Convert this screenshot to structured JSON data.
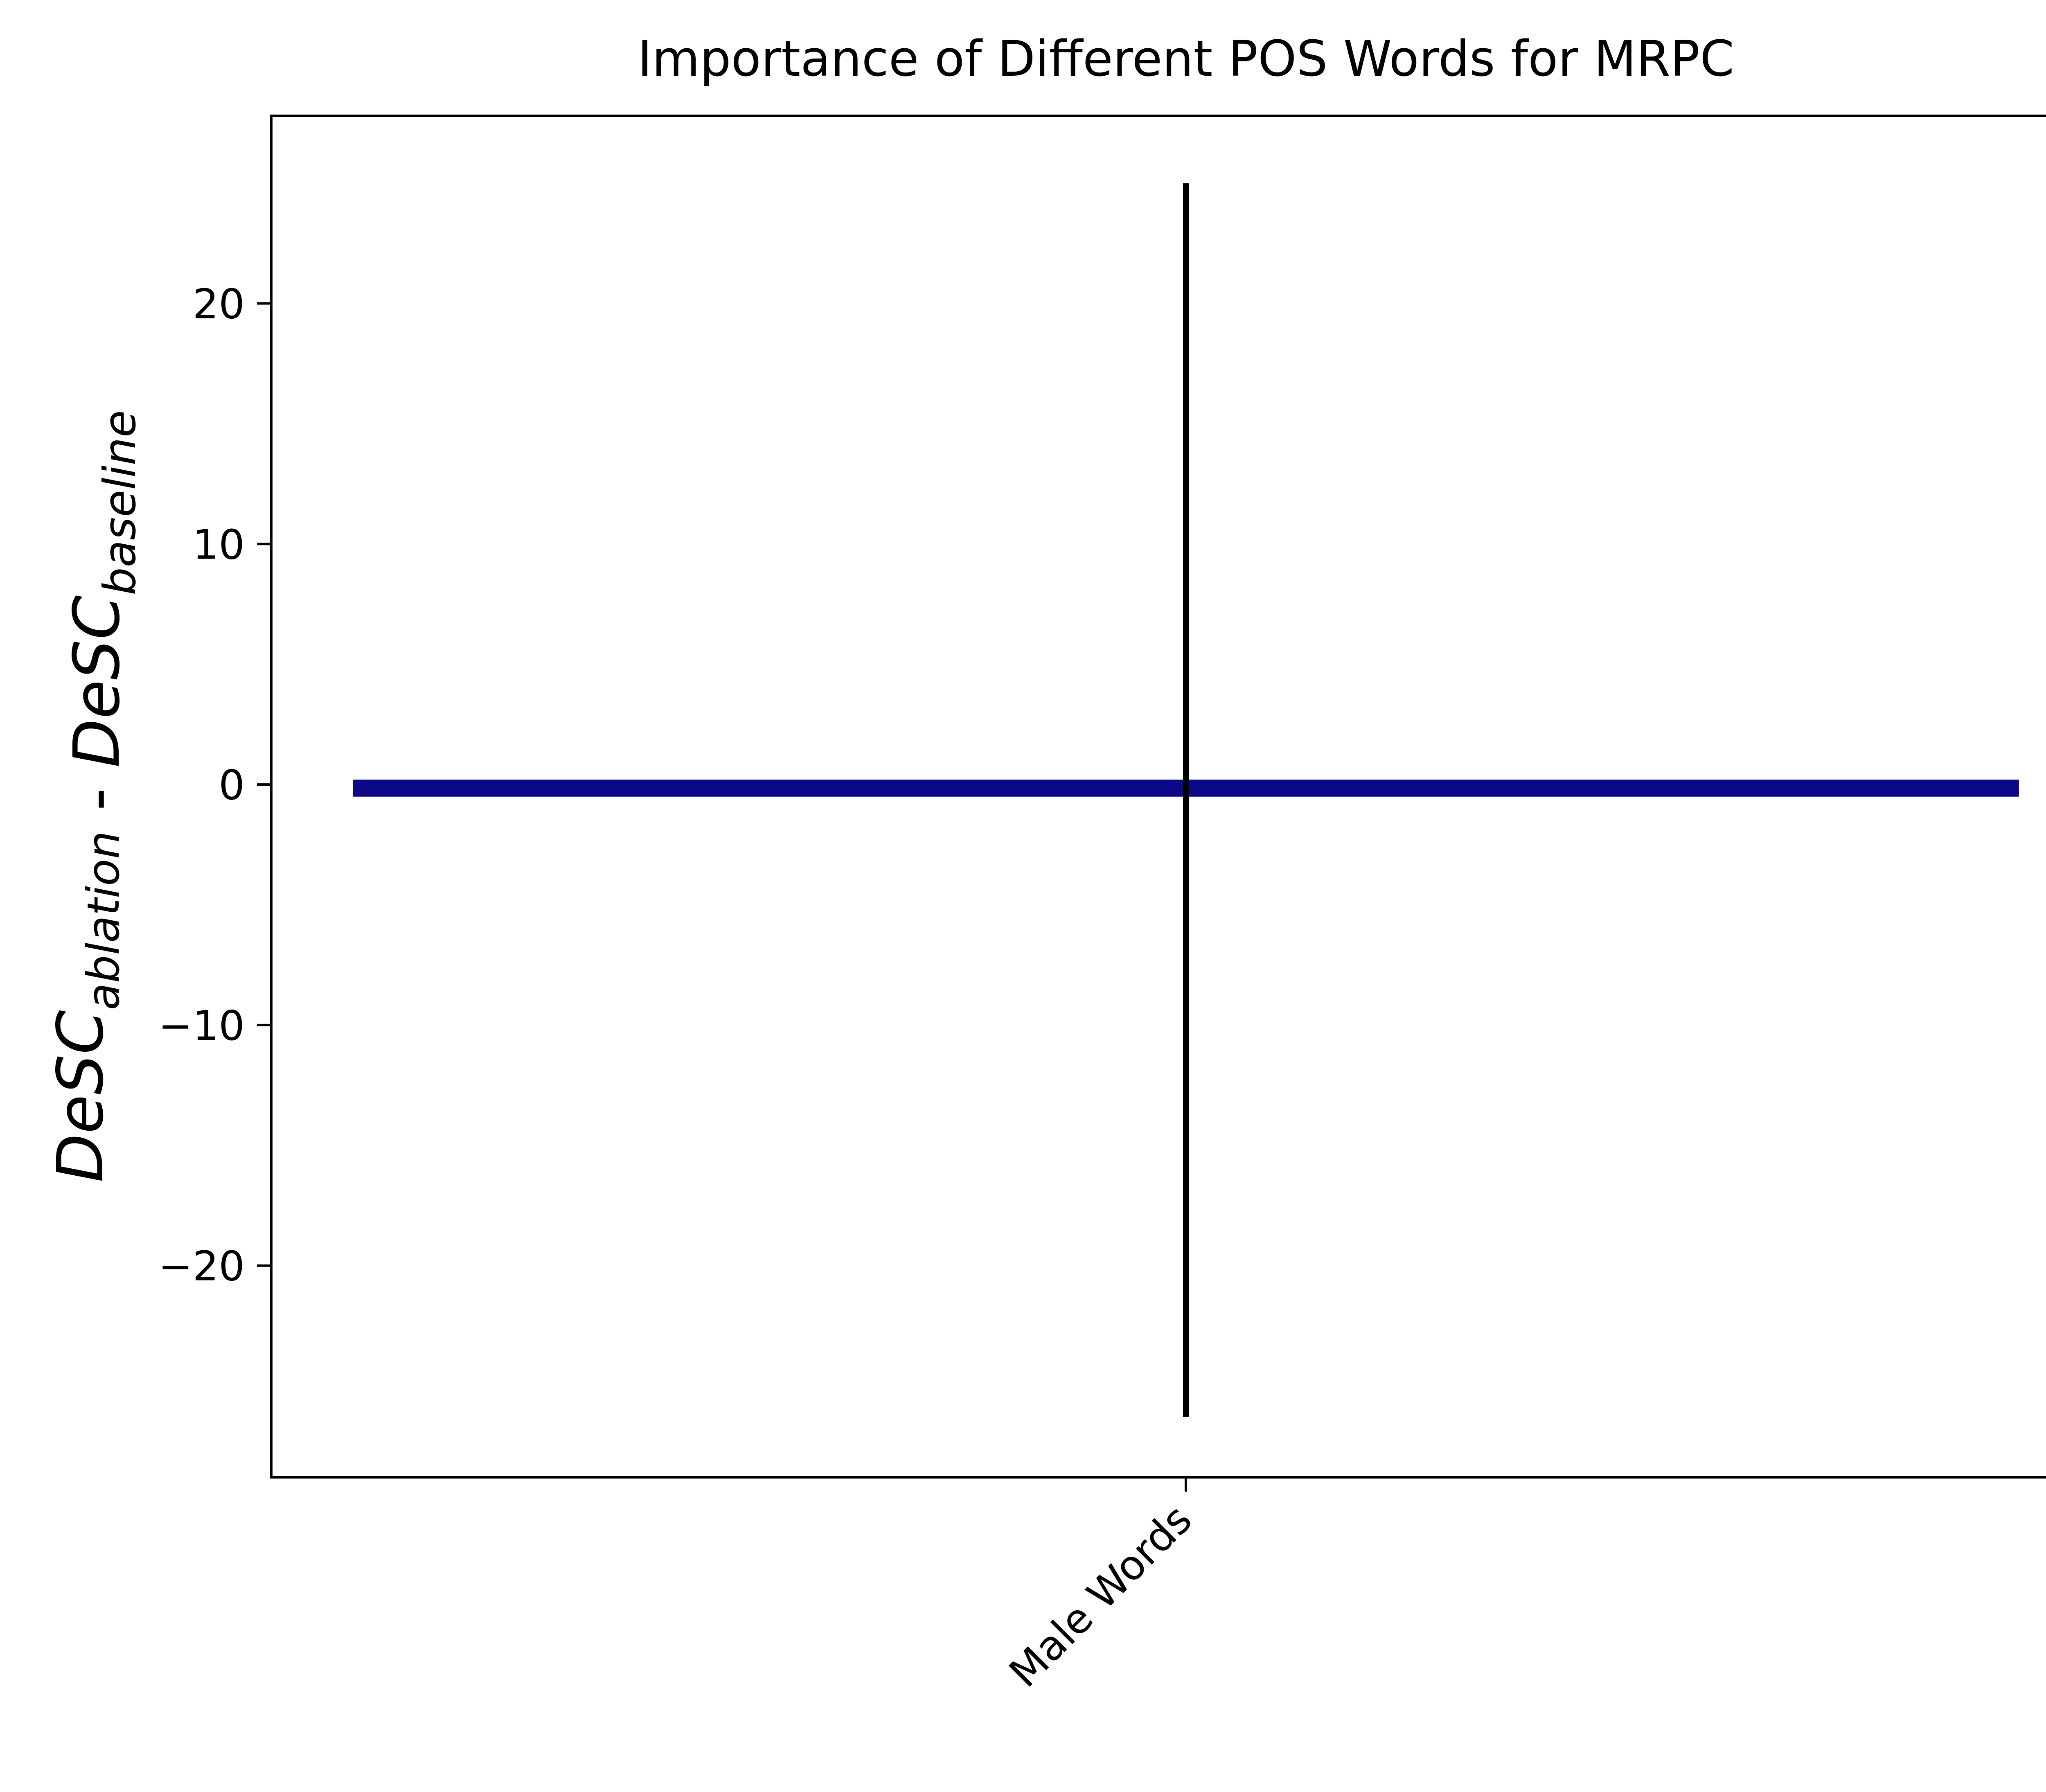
{
  "chart_data": {
    "type": "bar",
    "title": "Importance of Different POS Words for MRPC",
    "xlabel": "",
    "ylabel": {
      "parts": [
        {
          "text": "DeSC",
          "sub": "ablation"
        },
        {
          "text": " - "
        },
        {
          "text": "DeSC",
          "sub": "baseline"
        }
      ]
    },
    "categories": [
      "Male Words"
    ],
    "series": [
      {
        "values": [
          -0.3
        ],
        "error_low": [
          -26.3
        ],
        "error_high": [
          25.0
        ],
        "color": "#0d0887"
      }
    ],
    "ylim": [
      -28.8,
      27.8
    ],
    "yticks": [
      20,
      10,
      0,
      -10,
      -20
    ],
    "ytick_labels": [
      "20",
      "10",
      "0",
      "−10",
      "−20"
    ],
    "bar_edge_color": "#0d0887",
    "error_bar_color": "#000000",
    "grid": false,
    "legend": "none"
  }
}
